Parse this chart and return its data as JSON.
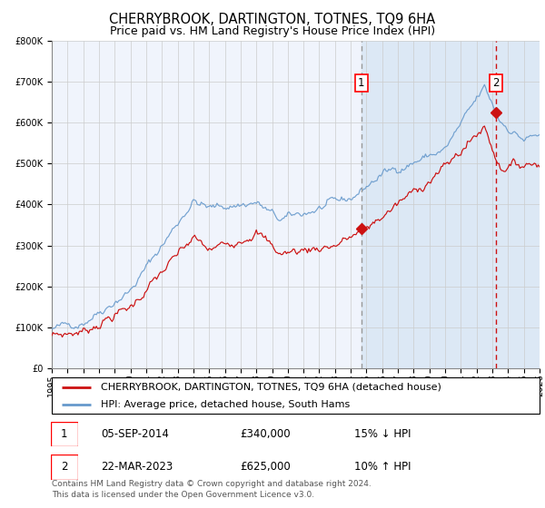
{
  "title": "CHERRYBROOK, DARTINGTON, TOTNES, TQ9 6HA",
  "subtitle": "Price paid vs. HM Land Registry's House Price Index (HPI)",
  "ylim": [
    0,
    800000
  ],
  "yticks": [
    0,
    100000,
    200000,
    300000,
    400000,
    500000,
    600000,
    700000,
    800000
  ],
  "xlim_start": 1995.0,
  "xlim_end": 2026.0,
  "bg_color": "#f0f4fc",
  "bg_shaded_color": "#dce8f5",
  "hatch_color": "#c8d8ec",
  "grid_color": "#cccccc",
  "hpi_color": "#6699cc",
  "price_color": "#cc1111",
  "marker_color": "#cc1111",
  "sale1_x": 2014.68,
  "sale1_y": 340000,
  "sale1_label": "1",
  "sale1_vline_color": "#999999",
  "sale2_x": 2023.22,
  "sale2_y": 625000,
  "sale2_label": "2",
  "sale2_vline_color": "#cc1111",
  "legend_line1": "CHERRYBROOK, DARTINGTON, TOTNES, TQ9 6HA (detached house)",
  "legend_line2": "HPI: Average price, detached house, South Hams",
  "table_row1_num": "1",
  "table_row1_date": "05-SEP-2014",
  "table_row1_price": "£340,000",
  "table_row1_hpi": "15% ↓ HPI",
  "table_row2_num": "2",
  "table_row2_date": "22-MAR-2023",
  "table_row2_price": "£625,000",
  "table_row2_hpi": "10% ↑ HPI",
  "footer": "Contains HM Land Registry data © Crown copyright and database right 2024.\nThis data is licensed under the Open Government Licence v3.0.",
  "title_fontsize": 10.5,
  "subtitle_fontsize": 9,
  "tick_fontsize": 7,
  "legend_fontsize": 8,
  "table_fontsize": 8.5,
  "footer_fontsize": 6.5
}
